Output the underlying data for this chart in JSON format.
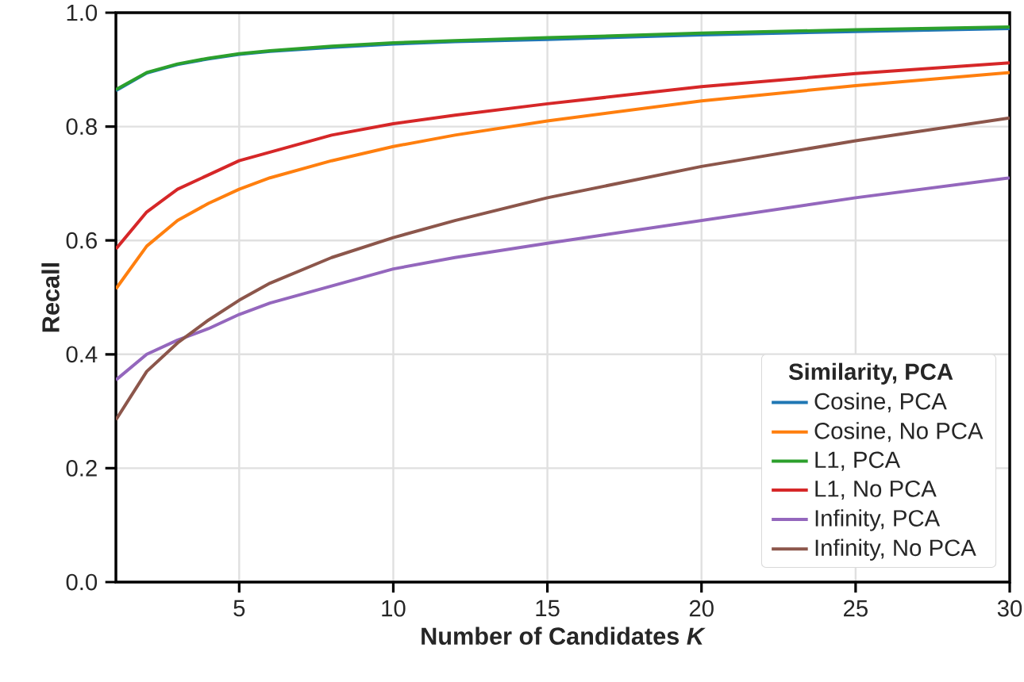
{
  "chart_data": {
    "type": "line",
    "xlabel": "Number of Candidates *K*",
    "ylabel": "Recall",
    "legend_title": "Similarity, PCA",
    "legend": "bottom right",
    "grid": true,
    "line_style": "solid",
    "xlim": [
      1,
      30
    ],
    "ylim": [
      0,
      1
    ],
    "xticks": [
      5,
      10,
      15,
      20,
      25,
      30
    ],
    "yticks": [
      {
        "value": 0,
        "label": "0.0"
      },
      {
        "value": 0.2,
        "label": "0.2"
      },
      {
        "value": 0.4,
        "label": "0.4"
      },
      {
        "value": 0.6,
        "label": "0.6"
      },
      {
        "value": 0.8,
        "label": "0.8"
      },
      {
        "value": 1,
        "label": "1.0"
      }
    ],
    "x": [
      1,
      2,
      3,
      4,
      5,
      6,
      8,
      10,
      12,
      15,
      20,
      25,
      30
    ],
    "series": [
      {
        "name": "Cosine, PCA",
        "color": "#1f77b4",
        "values": [
          0.863,
          0.894,
          0.909,
          0.919,
          0.927,
          0.932,
          0.939,
          0.945,
          0.949,
          0.953,
          0.961,
          0.967,
          0.972
        ]
      },
      {
        "name": "Cosine, No PCA",
        "color": "#ff7f0e",
        "values": [
          0.515,
          0.59,
          0.635,
          0.665,
          0.69,
          0.71,
          0.74,
          0.765,
          0.785,
          0.81,
          0.845,
          0.872,
          0.895
        ]
      },
      {
        "name": "L1, PCA",
        "color": "#2ca02c",
        "values": [
          0.865,
          0.895,
          0.91,
          0.92,
          0.928,
          0.933,
          0.941,
          0.947,
          0.951,
          0.956,
          0.964,
          0.97,
          0.975
        ]
      },
      {
        "name": "L1, No PCA",
        "color": "#d62728",
        "values": [
          0.585,
          0.65,
          0.69,
          0.715,
          0.74,
          0.755,
          0.785,
          0.805,
          0.82,
          0.84,
          0.87,
          0.893,
          0.912
        ]
      },
      {
        "name": "Infinity, PCA",
        "color": "#9467bd",
        "values": [
          0.355,
          0.4,
          0.425,
          0.445,
          0.47,
          0.49,
          0.52,
          0.55,
          0.57,
          0.595,
          0.635,
          0.675,
          0.71
        ]
      },
      {
        "name": "Infinity, No PCA",
        "color": "#8c564b",
        "values": [
          0.285,
          0.37,
          0.42,
          0.46,
          0.495,
          0.525,
          0.57,
          0.605,
          0.635,
          0.675,
          0.73,
          0.775,
          0.815
        ]
      }
    ]
  }
}
